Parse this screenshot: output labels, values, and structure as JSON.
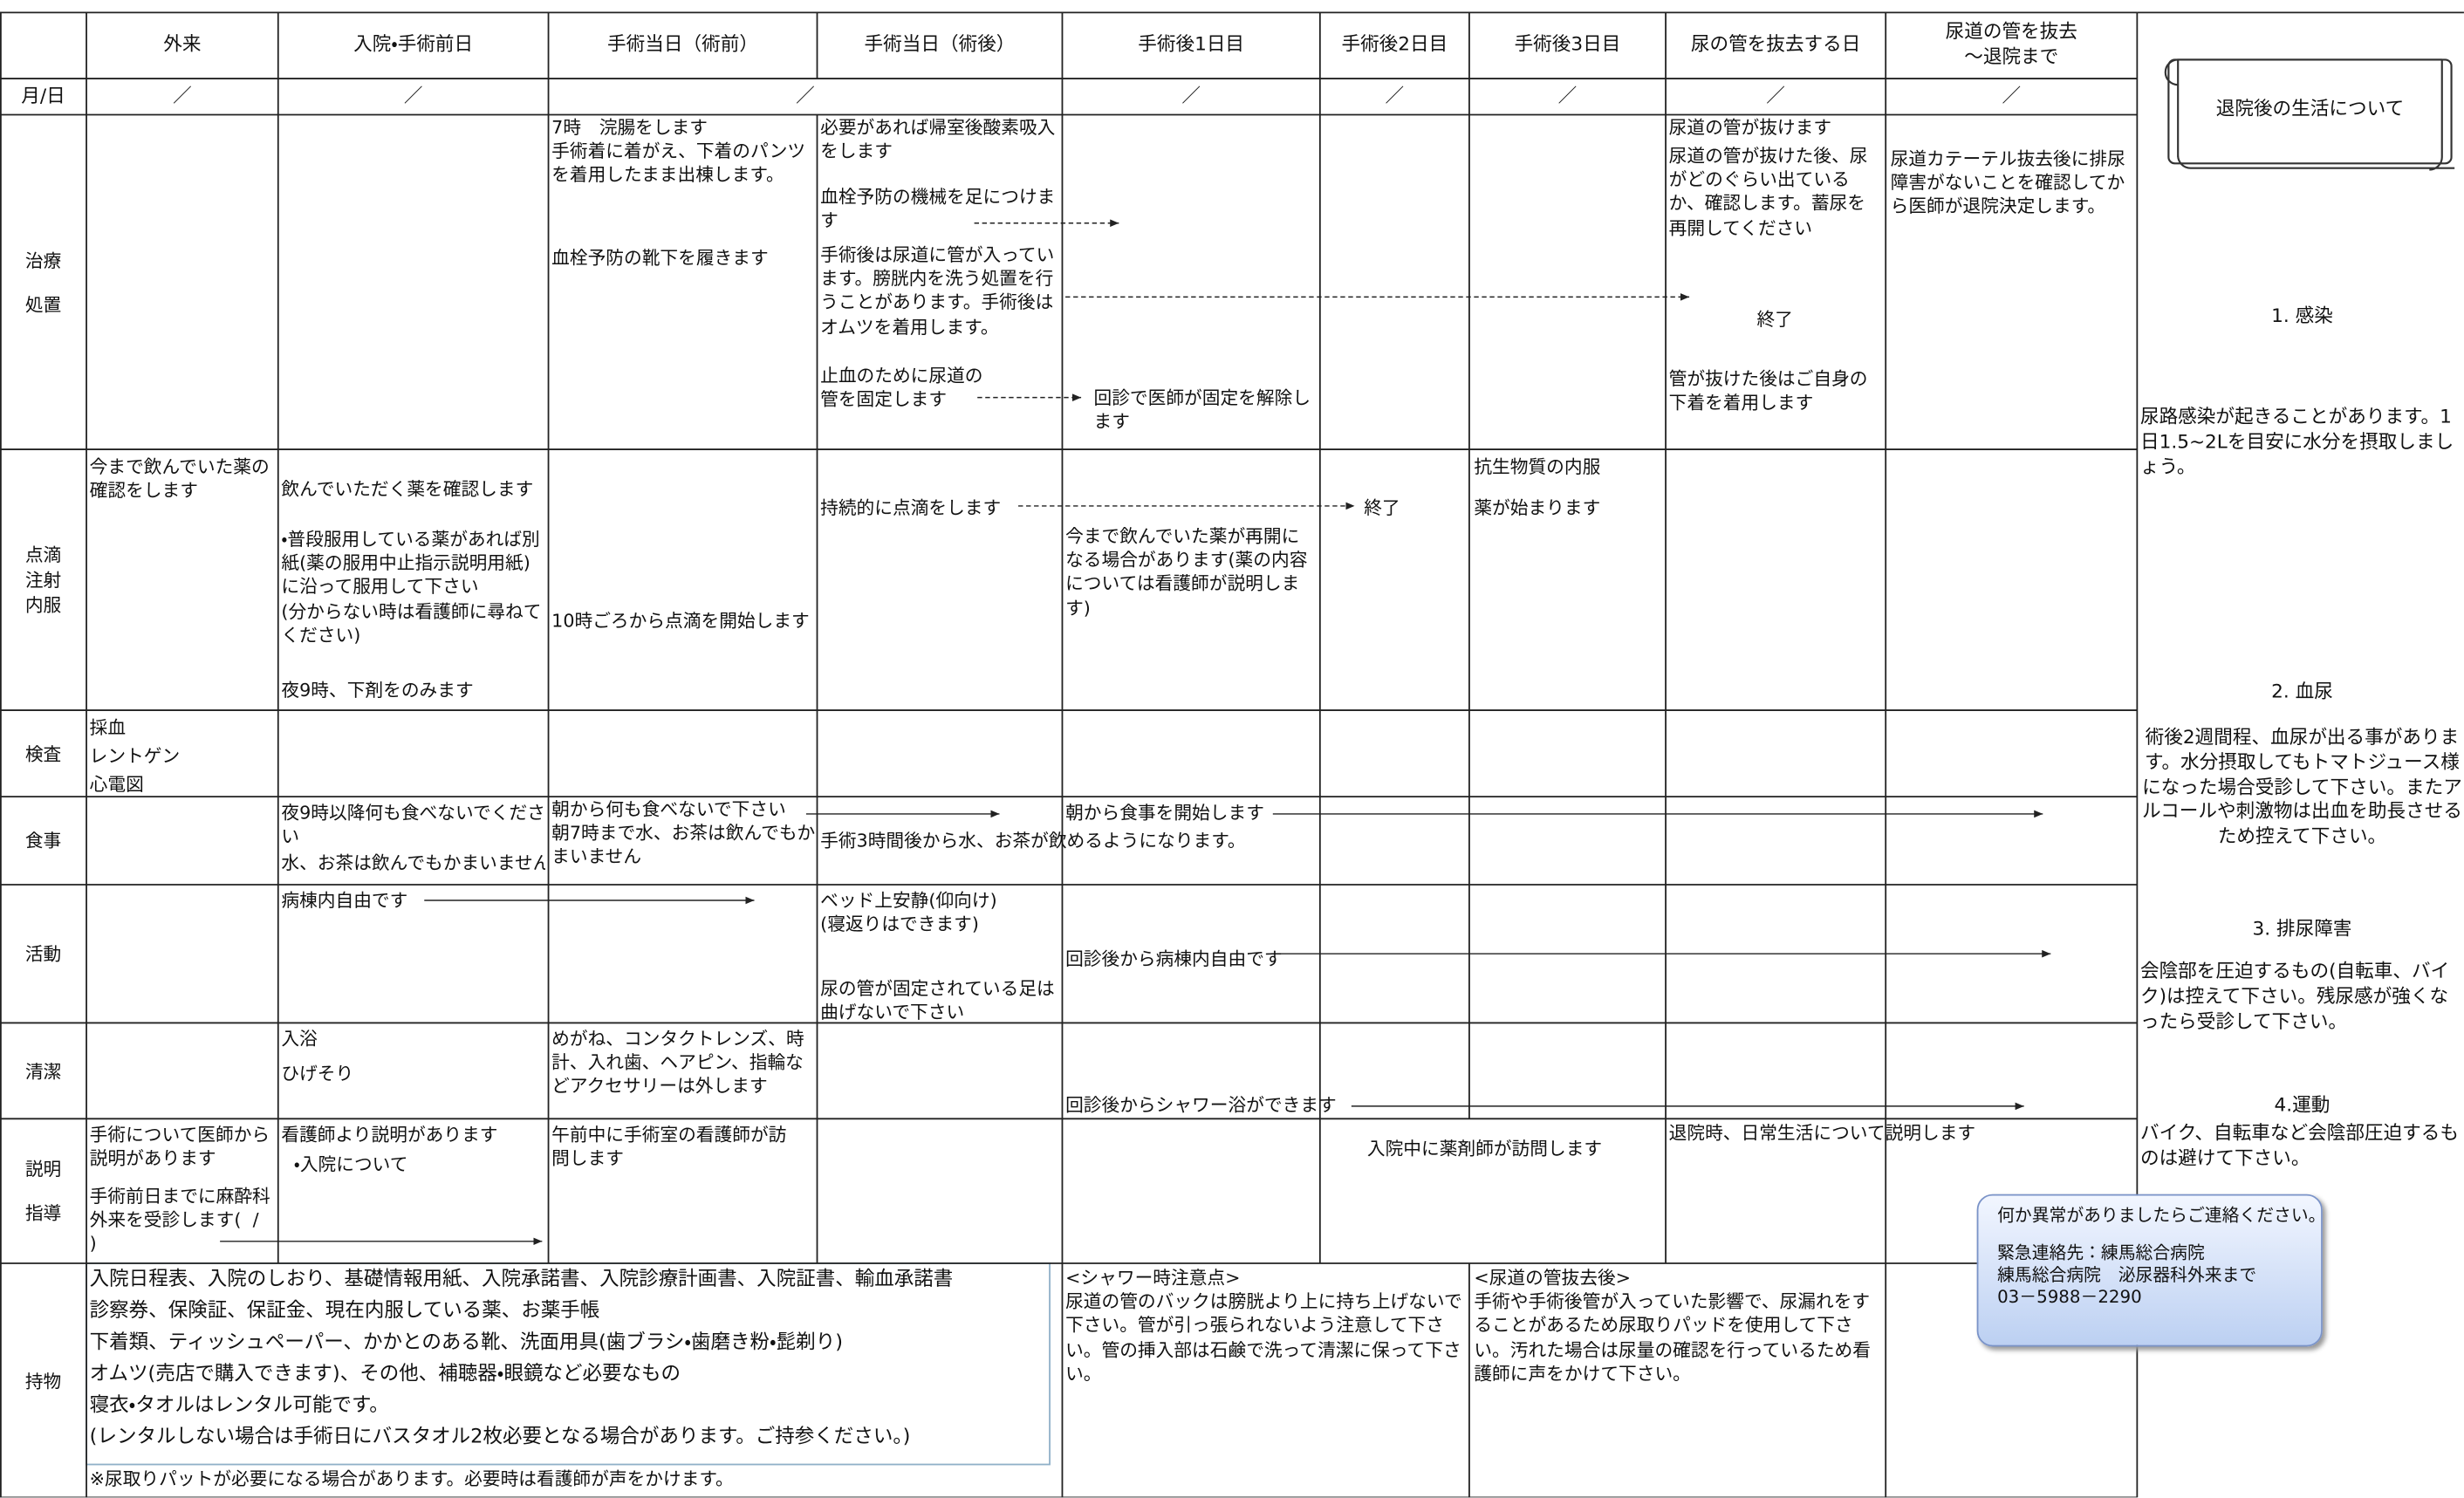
{
  "table": {
    "columns": [
      "外来",
      "入院・手術前日",
      "手術当日（術前）",
      "手術当日（術後）",
      "手術後1日目",
      "手術後2日目",
      "手術後3日目",
      "尿の管を抜去する日",
      "尿道の管を抜去\n～退院まで"
    ],
    "date_label": "月/日",
    "dates": [
      "／",
      "／",
      "／",
      "／",
      "／",
      "／",
      "／",
      "／"
    ],
    "row_labels": [
      [
        "治療",
        "処置"
      ],
      [
        "点滴",
        "注射",
        "内服"
      ],
      [
        "検査"
      ],
      [
        "食事"
      ],
      [
        "活動"
      ],
      [
        "清潔"
      ],
      [
        "説明",
        "指導"
      ],
      [
        "持物"
      ]
    ],
    "cells": [
      "7時　浣腸をします\n手術着に着がえ、下着のパンツを着用したまま出棟します。",
      "血栓予防の靴下を履きます",
      "必要があれば帰室後酸素吸入をします",
      "血栓予防の機械を足につけます",
      "手術後は尿道に管が入っています。膀胱内を洗う処置を行うことがあります。手術後はオムツを着用します。",
      "止血のために尿道の管を固定します",
      "回診で医師が固定を解除します",
      "尿道の管が抜けます",
      "尿道の管が抜けた後、尿がどのぐらい出ているか、確認します。蓄尿を再開してください",
      "終了",
      "管が抜けた後はご自身の下着を着用します",
      "尿道カテーテル抜去後に排尿障害がないことを確認してから医師が退院決定します。",
      "今まで飲んでいた薬の確認をします",
      "飲んでいただく薬を確認します",
      "・普段服用している薬があれば別紙(薬の服用中止指示説明用紙)に沿って服用して下さい\n(分からない時は看護師に尋ねてください)",
      "夜9時、下剤をのみます",
      "10時ごろから点滴を開始します",
      "持続的に点滴をします",
      "終了",
      "今まで飲んでいた薬が再開になる場合があります(薬の内容については看護師が説明します)",
      "抗生物質の内服",
      "薬が始まります",
      "採血\nレントゲン\n心電図",
      "夜9時以降何も食べないでください",
      "水、お茶は飲んでもかまいません",
      "朝から何も食べないで下さい\n朝7時まで水、お茶は飲んでもかまいません",
      "手術3時間後から水、お茶が飲めるようになります。",
      "朝から食事を開始します",
      "病棟内自由です",
      "ベッド上安静(仰向け)\n(寝返りはできます)",
      "尿の管が固定されている足は曲げないで下さい",
      "回診後から病棟内自由です",
      "入浴",
      "ひげそり",
      "めがね、コンタクトレンズ、時計、入れ歯、ヘアピン、指輪などアクセサリーは外します",
      "回診後からシャワー浴ができます",
      "手術について医師から説明があります",
      "手術前日までに麻酔科外来を受診します(  /  )",
      "看護師より説明があります",
      "・入院について",
      "午前中に手術室の看護師が訪問します",
      "入院中に薬剤師が訪問します",
      "退院時、日常生活について説明します",
      "<シャワー時注意点>\n尿道の管のバックは膀胱より上に持ち上げないで下さい。管が引っ張られないよう注意して下さい。管の挿入部は石鹸で洗って清潔に保って下さい。",
      "<尿道の管抜去後>\n手術や手術後管が入っていた影響で、尿漏れをすることがあるため尿取りパッドを使用して下さい。汚れた場合は尿量の確認を行っているため看護師に声をかけて下さい。",
      "※尿取りパットが必要になる場合があります。必要時は看護師が声をかけます。"
    ],
    "belongings": [
      "入院日程表、入院のしおり、基礎情報用紙、入院承諾書、入院診療計画書、入院証書、輸血承諾書",
      "診察券、保険証、保証金、現在内服している薬、お薬手帳",
      "下着類、ティッシュペーパー、かかとのある靴、洗面用具(歯ブラシ・歯磨き粉・髭剃り)",
      "オムツ(売店で購入できます)、その他、補聴器・眼鏡など必要なもの",
      "寝衣・タオルはレンタル可能です。",
      "(レンタルしない場合は手術日にバスタオル2枚必要となる場合があります。ご持参ください。)"
    ]
  },
  "sidebar": {
    "title": "退院後の生活について",
    "sections": [
      {
        "heading": "1. 感染",
        "text": "尿路感染が起きることがあります。1日1.5~2Lを目安に水分を摂取しましょう。"
      },
      {
        "heading": "2. 血尿",
        "text": "術後2週間程、血尿が出る事があります。水分摂取してもトマトジュース様になった場合受診して下さい。またアルコールや刺激物は出血を助長させるため控えて下さい。"
      },
      {
        "heading": "3. 排尿障害",
        "text": "会陰部を圧迫するもの(自転車、バイク)は控えて下さい。残尿感が強くなったら受診して下さい。"
      },
      {
        "heading": "4.運動",
        "text": "バイク、自転車など会陰部圧迫するものは避けて下さい。"
      }
    ],
    "contact": [
      "何か異常がありましたらご連絡ください。",
      "緊急連絡先：練馬総合病院",
      "練馬総合病院　泌尿器科外来まで",
      "03－5988－2290"
    ]
  }
}
